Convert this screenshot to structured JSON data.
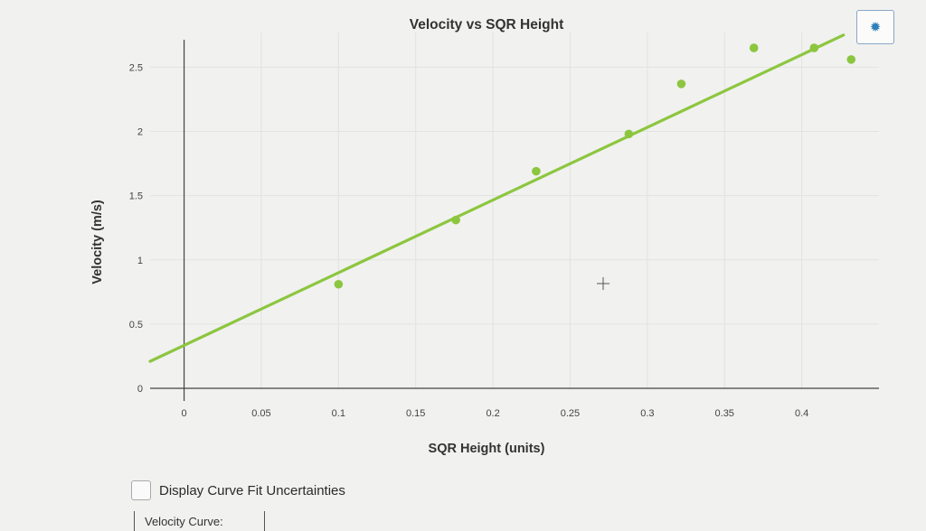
{
  "chart_data": {
    "type": "scatter",
    "title": "Velocity vs SQR Height",
    "xlabel": "SQR Height (units)",
    "ylabel": "Velocity (m/s)",
    "xlim": [
      -0.022,
      0.45
    ],
    "ylim": [
      0,
      2.77
    ],
    "xticks": [
      0,
      0.05,
      0.1,
      0.15,
      0.2,
      0.25,
      0.3,
      0.35,
      0.4
    ],
    "xtick_labels": [
      "0",
      "0.05",
      "0.1",
      "0.15",
      "0.2",
      "0.25",
      "0.3",
      "0.35",
      "0.4"
    ],
    "yticks": [
      0,
      0.5,
      1,
      1.5,
      2,
      2.5
    ],
    "ytick_labels": [
      "0",
      "0.5",
      "1",
      "1.5",
      "2",
      "2.5"
    ],
    "grid": true,
    "series": [
      {
        "points": [
          {
            "x": 0.1,
            "y": 0.81
          },
          {
            "x": 0.176,
            "y": 1.31
          },
          {
            "x": 0.228,
            "y": 1.69
          },
          {
            "x": 0.288,
            "y": 1.98
          },
          {
            "x": 0.322,
            "y": 2.37
          },
          {
            "x": 0.369,
            "y": 2.65
          },
          {
            "x": 0.408,
            "y": 2.65
          },
          {
            "x": 0.432,
            "y": 2.56
          }
        ]
      }
    ],
    "fit_line": {
      "x": [
        -0.022,
        0.427
      ],
      "y": [
        0.21,
        2.75
      ]
    },
    "color": "#8cc63f"
  },
  "controls": {
    "settings_icon": "gear-icon",
    "uncertainties_label": "Display Curve Fit Uncertainties",
    "uncertainties_checked": false,
    "curve_label": "Velocity Curve:"
  }
}
